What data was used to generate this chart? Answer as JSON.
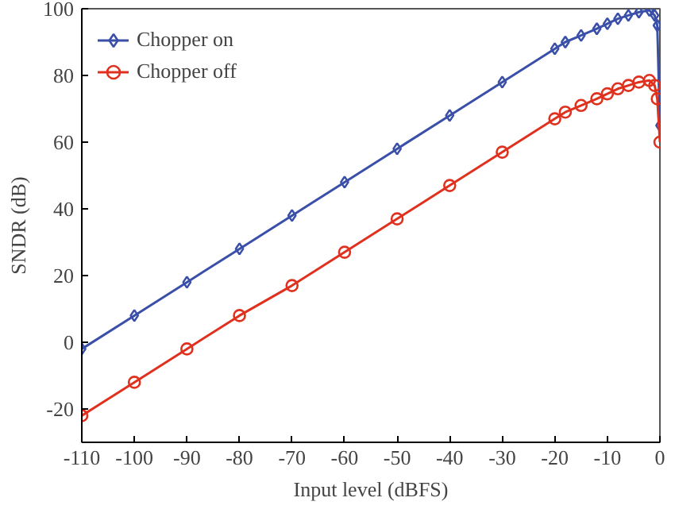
{
  "chart_data": {
    "type": "line",
    "xlabel": "Input level (dBFS)",
    "ylabel": "SNDR (dB)",
    "x": [
      -110,
      -100,
      -90,
      -80,
      -70,
      -60,
      -50,
      -40,
      -30,
      -20,
      -18,
      -15,
      -12,
      -10,
      -8,
      -6,
      -4,
      -2,
      -1,
      -0.5,
      0
    ],
    "series": [
      {
        "name": "Chopper on",
        "color": "#3a4fa8",
        "marker": "diamond",
        "values": [
          -2,
          8,
          18,
          28,
          38,
          48,
          58,
          68,
          78,
          88,
          90,
          92,
          94,
          95.5,
          97,
          98,
          99,
          99.5,
          98,
          95,
          65
        ]
      },
      {
        "name": "Chopper off",
        "color": "#e0301e",
        "marker": "circle",
        "values": [
          -22,
          -12,
          -2,
          8,
          17,
          27,
          37,
          47,
          57,
          67,
          69,
          71,
          73,
          74.5,
          76,
          77,
          78,
          78.5,
          77,
          73,
          60
        ]
      }
    ],
    "xlim": [
      -110,
      0
    ],
    "xticks": [
      -110,
      -100,
      -90,
      -80,
      -70,
      -60,
      -50,
      -40,
      -30,
      -20,
      -10,
      0
    ],
    "ylim": [
      -30,
      100
    ],
    "yticks": [
      -20,
      0,
      20,
      40,
      60,
      80,
      100
    ],
    "grid": false,
    "legend": "top left",
    "line_style": "solid"
  }
}
